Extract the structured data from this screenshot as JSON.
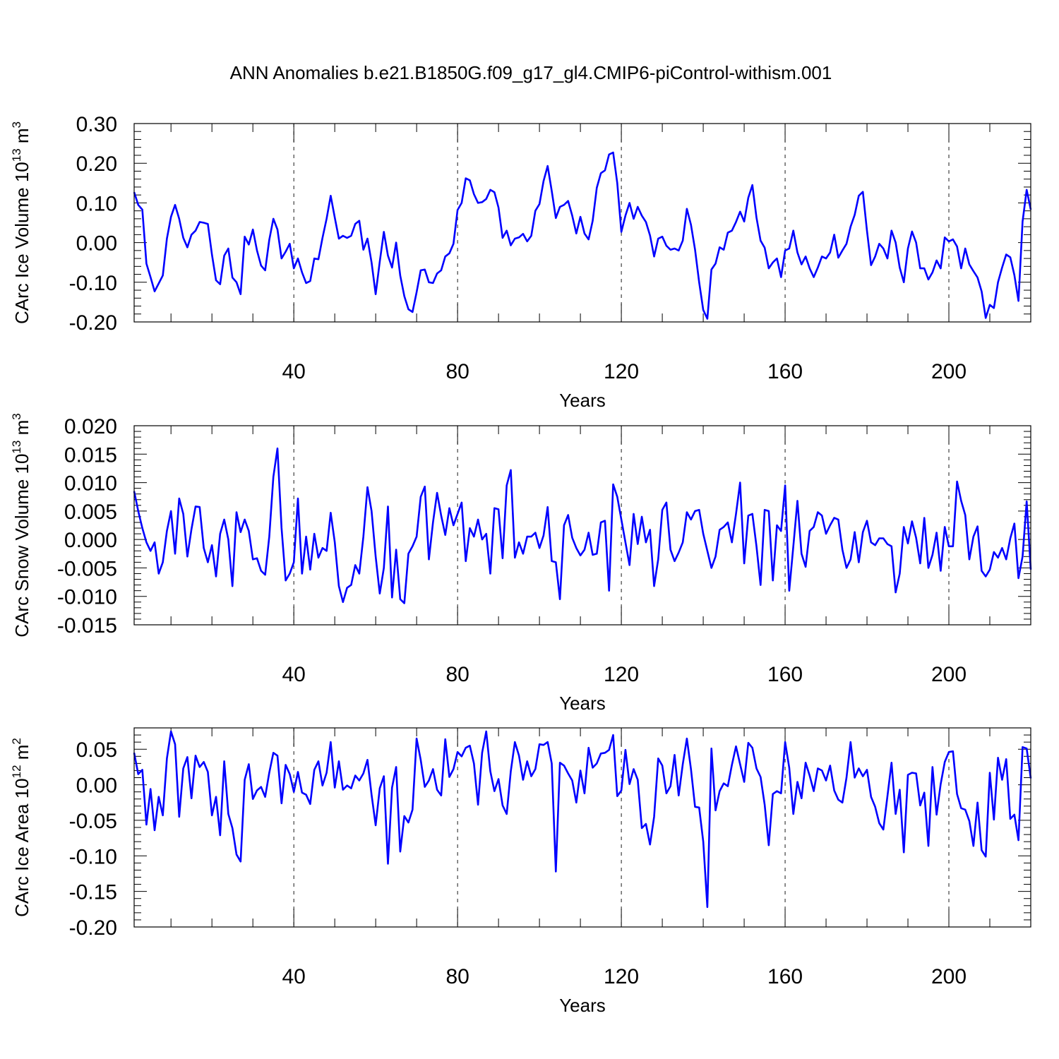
{
  "figure": {
    "title": "ANN Anomalies b.e21.B1850G.f09_g17_gl4.CMIP6-piControl-withism.001"
  },
  "chart_data": [
    {
      "type": "line",
      "panel": "ice-volume",
      "ylabel": {
        "prefix": "CArc Ice Volume 10",
        "exp": "13",
        "unit": " m",
        "unit_exp": "3"
      },
      "xlabel": "Years",
      "xlim": [
        1,
        220
      ],
      "ylim": [
        -0.2,
        0.3
      ],
      "xticks": [
        40,
        80,
        120,
        160,
        200
      ],
      "xtick_labels": [
        "40",
        "80",
        "120",
        "160",
        "200"
      ],
      "yticks": [
        -0.2,
        -0.1,
        0.0,
        0.1,
        0.2,
        0.3
      ],
      "ytick_labels": [
        "-0.20",
        "-0.10",
        "0.00",
        "0.10",
        "0.20",
        "0.30"
      ],
      "grid": "dashed vertical lines at x ticks",
      "color": "#0000ff",
      "x_start": 1,
      "values": [
        0.127,
        0.095,
        0.083,
        -0.053,
        -0.087,
        -0.123,
        -0.103,
        -0.083,
        0.01,
        0.065,
        0.095,
        0.06,
        0.012,
        -0.012,
        0.02,
        0.03,
        0.052,
        0.05,
        0.047,
        -0.03,
        -0.095,
        -0.105,
        -0.033,
        -0.015,
        -0.088,
        -0.1,
        -0.13,
        0.015,
        -0.005,
        0.033,
        -0.02,
        -0.058,
        -0.07,
        0.007,
        0.06,
        0.033,
        -0.04,
        -0.023,
        -0.003,
        -0.065,
        -0.04,
        -0.075,
        -0.102,
        -0.097,
        -0.04,
        -0.042,
        0.012,
        0.06,
        0.118,
        0.063,
        0.01,
        0.017,
        0.012,
        0.017,
        0.047,
        0.055,
        -0.018,
        0.01,
        -0.05,
        -0.13,
        -0.048,
        0.027,
        -0.033,
        -0.063,
        0.0,
        -0.083,
        -0.135,
        -0.168,
        -0.175,
        -0.125,
        -0.07,
        -0.068,
        -0.1,
        -0.102,
        -0.078,
        -0.07,
        -0.035,
        -0.027,
        -0.003,
        0.082,
        0.1,
        0.162,
        0.157,
        0.122,
        0.1,
        0.102,
        0.11,
        0.133,
        0.127,
        0.088,
        0.012,
        0.03,
        -0.007,
        0.01,
        0.013,
        0.022,
        0.003,
        0.017,
        0.08,
        0.097,
        0.155,
        0.193,
        0.13,
        0.062,
        0.09,
        0.095,
        0.105,
        0.068,
        0.023,
        0.065,
        0.023,
        0.008,
        0.055,
        0.138,
        0.175,
        0.182,
        0.222,
        0.227,
        0.15,
        0.027,
        0.068,
        0.1,
        0.06,
        0.09,
        0.068,
        0.052,
        0.018,
        -0.035,
        0.01,
        0.015,
        -0.008,
        -0.018,
        -0.015,
        -0.02,
        0.005,
        0.085,
        0.045,
        -0.018,
        -0.1,
        -0.17,
        -0.192,
        -0.068,
        -0.053,
        -0.012,
        -0.018,
        0.025,
        0.03,
        0.052,
        0.078,
        0.053,
        0.113,
        0.145,
        0.063,
        0.005,
        -0.013,
        -0.065,
        -0.05,
        -0.04,
        -0.087,
        -0.02,
        -0.015,
        0.03,
        -0.025,
        -0.055,
        -0.035,
        -0.065,
        -0.087,
        -0.063,
        -0.035,
        -0.04,
        -0.025,
        0.02,
        -0.038,
        -0.02,
        -0.003,
        0.04,
        0.07,
        0.118,
        0.128,
        0.03,
        -0.057,
        -0.035,
        -0.003,
        -0.015,
        -0.04,
        0.03,
        0.0,
        -0.063,
        -0.1,
        -0.015,
        0.028,
        0.0,
        -0.065,
        -0.065,
        -0.093,
        -0.075,
        -0.045,
        -0.065,
        0.013,
        0.003,
        0.008,
        -0.01,
        -0.065,
        -0.015,
        -0.055,
        -0.072,
        -0.088,
        -0.123,
        -0.19,
        -0.157,
        -0.165,
        -0.1,
        -0.063,
        -0.03,
        -0.037,
        -0.082,
        -0.147,
        0.053,
        0.133,
        0.083
      ]
    },
    {
      "type": "line",
      "panel": "snow-volume",
      "ylabel": {
        "prefix": "CArc Snow Volume 10",
        "exp": "13",
        "unit": " m",
        "unit_exp": "3"
      },
      "xlabel": "Years",
      "xlim": [
        1,
        220
      ],
      "ylim": [
        -0.015,
        0.02
      ],
      "xticks": [
        40,
        80,
        120,
        160,
        200
      ],
      "xtick_labels": [
        "40",
        "80",
        "120",
        "160",
        "200"
      ],
      "yticks": [
        -0.015,
        -0.01,
        -0.005,
        0.0,
        0.005,
        0.01,
        0.015,
        0.02
      ],
      "ytick_labels": [
        "-0.015",
        "-0.010",
        "-0.005",
        "0.000",
        "0.005",
        "0.010",
        "0.015",
        "0.020"
      ],
      "grid": "dashed vertical lines at x ticks",
      "color": "#0000ff",
      "x_start": 1,
      "values": [
        0.0085,
        0.005,
        0.002,
        -0.0005,
        -0.002,
        -0.0005,
        -0.006,
        -0.004,
        0.0015,
        0.005,
        -0.0025,
        0.0072,
        0.0045,
        -0.003,
        0.0018,
        0.0058,
        0.0057,
        -0.0015,
        -0.004,
        -0.001,
        -0.0065,
        0.001,
        0.0035,
        0.0,
        -0.0082,
        0.0048,
        0.0013,
        0.0035,
        0.0015,
        -0.0035,
        -0.0033,
        -0.0055,
        -0.0062,
        0.0005,
        0.011,
        0.016,
        0.002,
        -0.0072,
        -0.006,
        -0.004,
        0.0072,
        -0.006,
        0.0005,
        -0.0053,
        0.001,
        -0.0032,
        -0.0015,
        -0.002,
        0.0047,
        -0.0005,
        -0.0082,
        -0.011,
        -0.0085,
        -0.008,
        -0.0045,
        -0.006,
        0.0005,
        0.0092,
        0.005,
        -0.003,
        -0.0095,
        -0.005,
        0.0058,
        -0.0102,
        -0.0018,
        -0.0105,
        -0.0112,
        -0.0025,
        -0.0012,
        0.0005,
        0.0075,
        0.0093,
        -0.0035,
        0.003,
        0.0082,
        0.0042,
        0.0008,
        0.0055,
        0.0025,
        0.0045,
        0.0065,
        -0.0038,
        0.002,
        0.0005,
        0.0035,
        0.0,
        0.001,
        -0.006,
        0.0055,
        0.0053,
        -0.0033,
        0.0095,
        0.0122,
        -0.0032,
        -0.0005,
        -0.0025,
        0.0005,
        0.0005,
        0.0012,
        -0.0015,
        0.0007,
        0.0057,
        -0.0038,
        -0.004,
        -0.0105,
        0.0025,
        0.0043,
        0.0003,
        -0.0015,
        -0.0028,
        -0.0018,
        0.0012,
        -0.0027,
        -0.0025,
        0.003,
        0.0033,
        -0.009,
        0.0097,
        0.0075,
        0.0035,
        -0.0005,
        -0.0045,
        0.0045,
        -0.0008,
        0.004,
        -0.0005,
        0.0017,
        -0.0082,
        -0.0035,
        0.0052,
        0.0065,
        -0.0018,
        -0.0038,
        -0.0023,
        -0.0005,
        0.0048,
        0.0035,
        0.005,
        0.0052,
        0.001,
        -0.002,
        -0.005,
        -0.003,
        0.0017,
        0.0022,
        0.003,
        -0.0005,
        0.0045,
        0.01,
        -0.0042,
        0.0042,
        0.0045,
        -0.0012,
        -0.008,
        0.0052,
        0.005,
        -0.0072,
        0.0025,
        0.0015,
        0.0095,
        -0.009,
        -0.0012,
        0.0068,
        -0.0025,
        -0.0048,
        0.0015,
        0.0022,
        0.0048,
        0.0042,
        0.001,
        0.0025,
        0.0038,
        0.0035,
        -0.0018,
        -0.005,
        -0.0035,
        0.0013,
        -0.004,
        0.0013,
        0.0033,
        -0.0005,
        -0.001,
        0.0002,
        0.0002,
        -0.0008,
        -0.0012,
        -0.0093,
        -0.006,
        0.0022,
        -0.0007,
        0.0032,
        0.0003,
        -0.0042,
        0.0038,
        -0.005,
        -0.0027,
        0.0012,
        -0.0055,
        0.0022,
        -0.0012,
        -0.0012,
        0.0102,
        0.0068,
        0.0043,
        -0.0035,
        0.0005,
        0.0023,
        -0.0055,
        -0.0065,
        -0.0053,
        -0.0022,
        -0.0032,
        -0.0015,
        -0.0035,
        0.0002,
        0.0028,
        -0.0068,
        -0.003,
        0.0067,
        -0.0053
      ]
    },
    {
      "type": "line",
      "panel": "ice-area",
      "ylabel": {
        "prefix": "CArc Ice Area 10",
        "exp": "12",
        "unit": " m",
        "unit_exp": "2"
      },
      "xlabel": "Years",
      "xlim": [
        1,
        220
      ],
      "ylim": [
        -0.2,
        0.08
      ],
      "xticks": [
        40,
        80,
        120,
        160,
        200
      ],
      "xtick_labels": [
        "40",
        "80",
        "120",
        "160",
        "200"
      ],
      "yticks": [
        -0.2,
        -0.15,
        -0.1,
        -0.05,
        0.0,
        0.05
      ],
      "ytick_labels": [
        "-0.20",
        "-0.15",
        "-0.10",
        "-0.05",
        "0.00",
        "0.05"
      ],
      "grid": "dashed vertical lines at x ticks",
      "color": "#0000ff",
      "x_start": 1,
      "values": [
        0.045,
        0.015,
        0.021,
        -0.056,
        -0.006,
        -0.064,
        -0.017,
        -0.043,
        0.037,
        0.075,
        0.057,
        -0.045,
        0.023,
        0.039,
        -0.019,
        0.041,
        0.025,
        0.032,
        0.018,
        -0.043,
        -0.017,
        -0.071,
        0.033,
        -0.041,
        -0.061,
        -0.098,
        -0.108,
        0.007,
        0.029,
        -0.02,
        -0.008,
        -0.003,
        -0.017,
        0.017,
        0.045,
        0.041,
        -0.026,
        0.028,
        0.015,
        -0.01,
        0.018,
        -0.011,
        -0.014,
        -0.027,
        0.021,
        0.033,
        -0.001,
        0.017,
        0.06,
        -0.004,
        0.033,
        -0.007,
        -0.001,
        -0.005,
        0.013,
        0.006,
        0.016,
        0.035,
        -0.014,
        -0.057,
        -0.005,
        0.012,
        -0.111,
        -0.004,
        0.025,
        -0.094,
        -0.044,
        -0.053,
        -0.035,
        0.065,
        0.035,
        -0.003,
        0.006,
        0.022,
        -0.007,
        -0.015,
        0.064,
        0.011,
        0.022,
        0.046,
        0.04,
        0.052,
        0.055,
        0.03,
        -0.028,
        0.045,
        0.075,
        0.019,
        -0.009,
        0.008,
        -0.029,
        -0.041,
        0.019,
        0.06,
        0.041,
        0.007,
        0.033,
        0.012,
        0.022,
        0.057,
        0.056,
        0.06,
        0.03,
        -0.122,
        0.031,
        0.027,
        0.016,
        0.006,
        -0.025,
        0.02,
        -0.012,
        0.052,
        0.024,
        0.03,
        0.044,
        0.045,
        0.049,
        0.07,
        -0.016,
        -0.008,
        0.049,
        0.001,
        0.022,
        0.007,
        -0.061,
        -0.055,
        -0.084,
        -0.045,
        0.037,
        0.027,
        -0.012,
        -0.002,
        0.042,
        -0.015,
        0.029,
        0.065,
        0.022,
        -0.031,
        -0.032,
        -0.08,
        -0.172,
        0.051,
        -0.036,
        -0.009,
        0.002,
        -0.002,
        0.028,
        0.054,
        0.029,
        0.004,
        0.059,
        0.052,
        0.023,
        0.011,
        -0.028,
        -0.085,
        -0.013,
        -0.009,
        -0.012,
        0.06,
        0.024,
        -0.041,
        0.004,
        -0.019,
        0.031,
        0.013,
        -0.009,
        0.023,
        0.02,
        0.006,
        0.027,
        -0.008,
        -0.021,
        -0.025,
        0.01,
        0.06,
        0.01,
        0.023,
        0.012,
        0.021,
        -0.017,
        -0.031,
        -0.054,
        -0.063,
        -0.016,
        0.031,
        -0.041,
        -0.007,
        -0.095,
        0.014,
        0.017,
        0.016,
        -0.029,
        -0.011,
        -0.086,
        0.025,
        -0.042,
        0.001,
        0.032,
        0.046,
        0.047,
        -0.013,
        -0.033,
        -0.035,
        -0.051,
        -0.086,
        -0.025,
        -0.092,
        -0.101,
        0.017,
        -0.049,
        0.038,
        0.007,
        0.036,
        -0.048,
        -0.042,
        -0.078,
        0.053,
        0.051,
        0.009
      ]
    }
  ]
}
